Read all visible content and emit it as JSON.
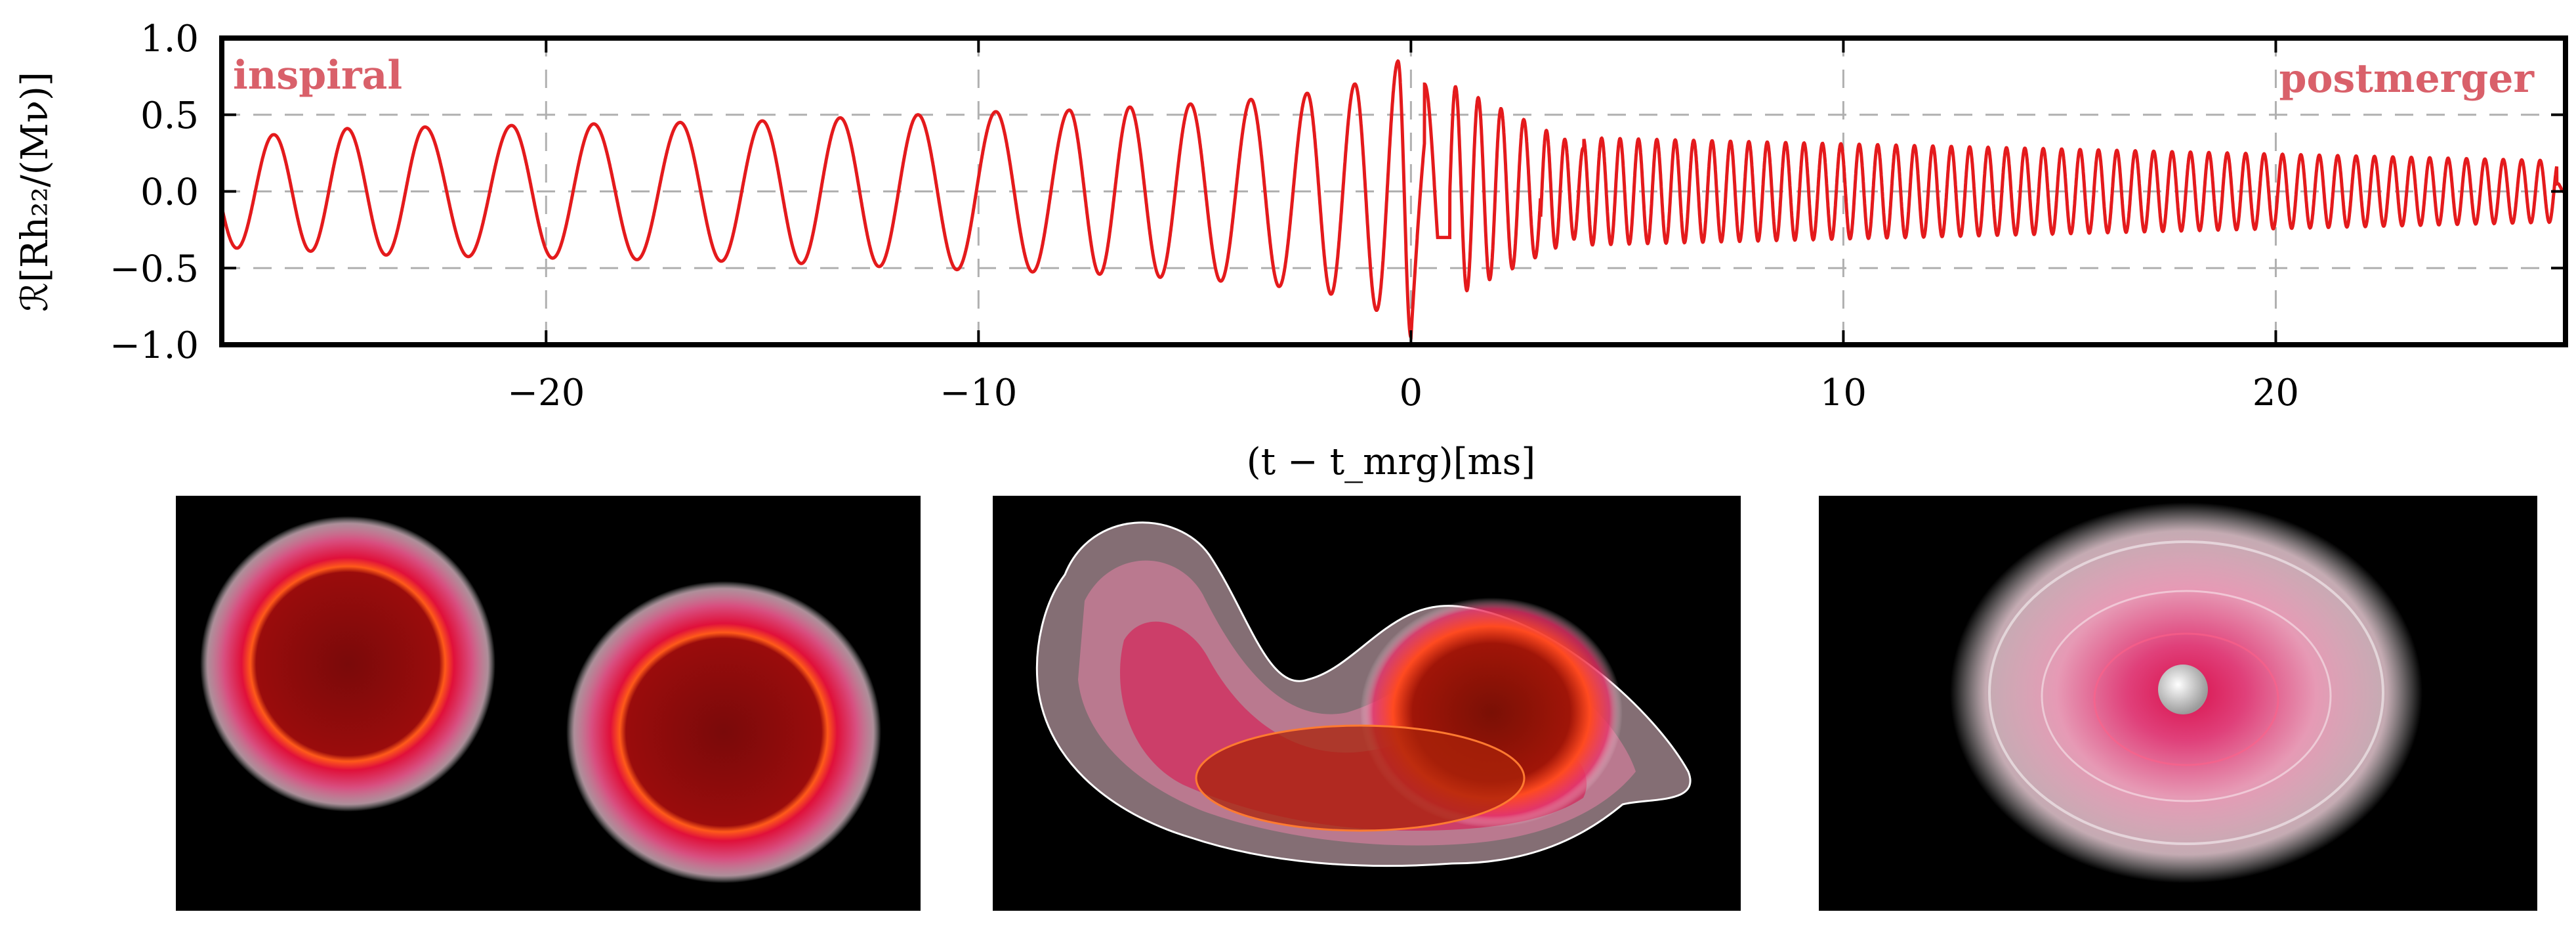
{
  "chart_data": {
    "type": "line",
    "xlabel": "(t − t_mrg)[ms]",
    "ylabel": "ℛ[Rh₂₂/(Mν)]",
    "xlim": [
      -27.5,
      26.7
    ],
    "ylim": [
      -1.0,
      1.0
    ],
    "x_ticks": [
      -20,
      -10,
      0,
      10,
      20
    ],
    "x_tick_labels": [
      "−20",
      "−10",
      "0",
      "10",
      "20"
    ],
    "y_ticks": [
      1.0,
      0.5,
      0.0,
      -0.5,
      -1.0
    ],
    "y_tick_labels": [
      "1.0",
      "0.5",
      "0.0",
      "−0.5",
      "−1.0"
    ],
    "grid": true,
    "series": [
      {
        "color": "#e41a1c",
        "description_points": {
          "inspiral_peaks": [
            [
              -26.3,
              0.37
            ],
            [
              -24.6,
              0.41
            ],
            [
              -22.8,
              0.42
            ],
            [
              -20.8,
              0.43
            ],
            [
              -18.9,
              0.44
            ],
            [
              -16.9,
              0.45
            ],
            [
              -15.0,
              0.46
            ],
            [
              -13.2,
              0.48
            ],
            [
              -11.4,
              0.5
            ],
            [
              -9.6,
              0.52
            ],
            [
              -7.9,
              0.53
            ],
            [
              -6.5,
              0.55
            ],
            [
              -5.1,
              0.57
            ],
            [
              -3.7,
              0.6
            ],
            [
              -2.4,
              0.64
            ],
            [
              -1.3,
              0.7
            ],
            [
              -0.3,
              0.85
            ]
          ],
          "merger_trough": [
            0.0,
            -0.95
          ],
          "postmerger_start_amp": 0.7,
          "postmerger_end_amp": 0.2,
          "end_time": 26.5
        }
      }
    ],
    "annotations": [
      {
        "text": "inspiral",
        "position": "top-left"
      },
      {
        "text": "postmerger",
        "position": "top-right"
      }
    ]
  },
  "colors": {
    "waveform": "#e41a1c",
    "annotation": "#d9606a",
    "panel_background": "#000000"
  },
  "panels": [
    {
      "name": "inspiral-stars"
    },
    {
      "name": "merger-snapshot"
    },
    {
      "name": "postmerger-disk"
    }
  ]
}
